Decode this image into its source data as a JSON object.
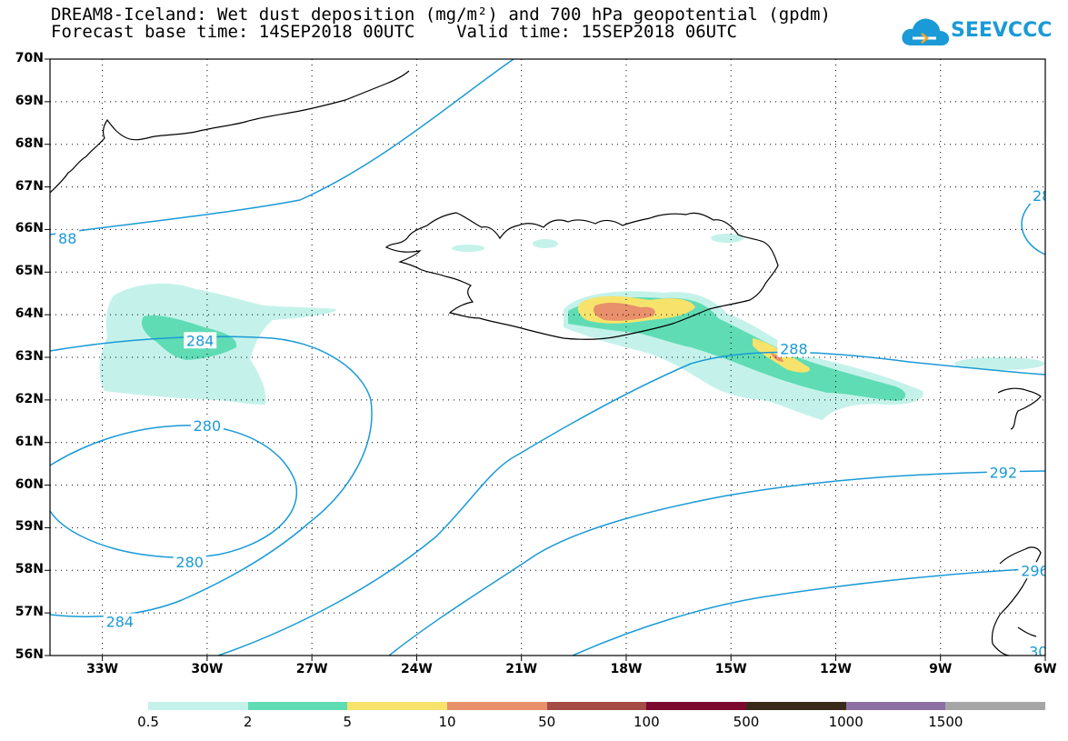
{
  "title": {
    "line1": "DREAM8-Iceland: Wet dust deposition (mg/m²) and 700 hPa geopotential (gpdm)",
    "line2": "Forecast base time: 14SEP2018 00UTC    Valid time: 15SEP2018 06UTC"
  },
  "logo": {
    "text": "SEEVCCC",
    "icon": "cloud-icon",
    "color": "#1a9ad6"
  },
  "axes": {
    "lat_labels": [
      "70N",
      "69N",
      "68N",
      "67N",
      "66N",
      "65N",
      "64N",
      "63N",
      "62N",
      "61N",
      "60N",
      "59N",
      "58N",
      "57N",
      "56N"
    ],
    "lon_labels": [
      "33W",
      "30W",
      "27W",
      "24W",
      "21W",
      "18W",
      "15W",
      "12W",
      "9W",
      "6W"
    ]
  },
  "contours": {
    "labels": [
      {
        "text": "284",
        "lon": -30.2,
        "lat": 63.4
      },
      {
        "text": "280",
        "lon": -30.0,
        "lat": 61.4
      },
      {
        "text": "280",
        "lon": -30.5,
        "lat": 58.2
      },
      {
        "text": "284",
        "lon": -32.5,
        "lat": 56.8
      },
      {
        "text": "288",
        "lon": -13.2,
        "lat": 63.2
      },
      {
        "text": "292",
        "lon": -7.2,
        "lat": 60.3
      },
      {
        "text": "88",
        "lon": -34.0,
        "lat": 65.8
      },
      {
        "text": "28",
        "lon": -6.1,
        "lat": 66.8
      },
      {
        "text": "296",
        "lon": -6.3,
        "lat": 58.0
      },
      {
        "text": "30",
        "lon": -6.2,
        "lat": 56.1
      }
    ]
  },
  "legend": {
    "colors": [
      "#c4f2ea",
      "#5fdcb4",
      "#f7e36b",
      "#e88f6b",
      "#a54b45",
      "#7b0a2e",
      "#3a2a1a",
      "#8d6fa3",
      "#a6a6a6"
    ],
    "labels": [
      "0.5",
      "2",
      "5",
      "10",
      "50",
      "100",
      "500",
      "1000",
      "1500"
    ]
  }
}
